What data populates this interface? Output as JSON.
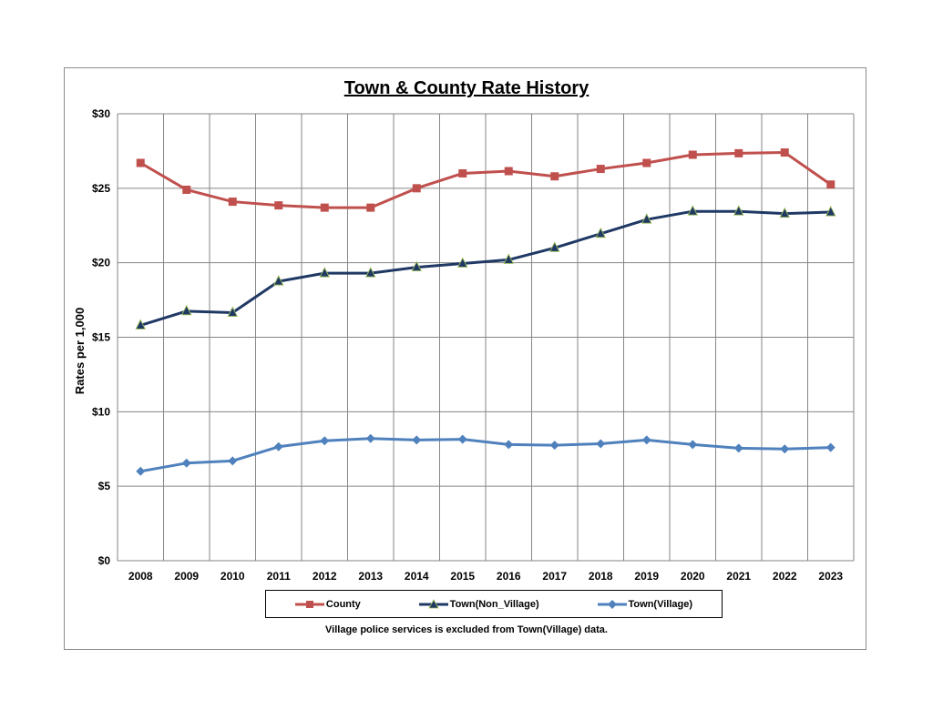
{
  "chart_data": {
    "type": "line",
    "title": "Town & County Rate History",
    "xlabel": "",
    "ylabel": "Rates per 1,000",
    "ylim": [
      0,
      30
    ],
    "yticks": [
      0,
      5,
      10,
      15,
      20,
      25,
      30
    ],
    "ytick_labels": [
      "$0",
      "$5",
      "$10",
      "$15",
      "$20",
      "$25",
      "$30"
    ],
    "categories": [
      "2008",
      "2009",
      "2010",
      "2011",
      "2012",
      "2013",
      "2014",
      "2015",
      "2016",
      "2017",
      "2018",
      "2019",
      "2020",
      "2021",
      "2022",
      "2023"
    ],
    "grid": true,
    "legend_position": "bottom",
    "series": [
      {
        "name": "County",
        "color": "#c0504d",
        "marker": "square",
        "values": [
          26.7,
          24.9,
          24.1,
          23.85,
          23.7,
          23.7,
          25.0,
          26.0,
          26.15,
          25.8,
          26.3,
          26.7,
          27.25,
          27.35,
          27.4,
          25.25
        ]
      },
      {
        "name": "Town(Non_Village)",
        "color": "#1f3864",
        "marker": "triangle",
        "values": [
          15.8,
          16.75,
          16.65,
          18.75,
          19.3,
          19.3,
          19.7,
          19.95,
          20.2,
          21.0,
          21.95,
          22.9,
          23.45,
          23.45,
          23.3,
          23.4
        ]
      },
      {
        "name": "Town(Village)",
        "color": "#4f81bd",
        "marker": "diamond",
        "values": [
          6.0,
          6.55,
          6.7,
          7.65,
          8.05,
          8.2,
          8.1,
          8.15,
          7.8,
          7.75,
          7.85,
          8.1,
          7.8,
          7.55,
          7.5,
          7.6
        ]
      }
    ],
    "footnote": "Village police services is excluded from Town(Village) data."
  }
}
